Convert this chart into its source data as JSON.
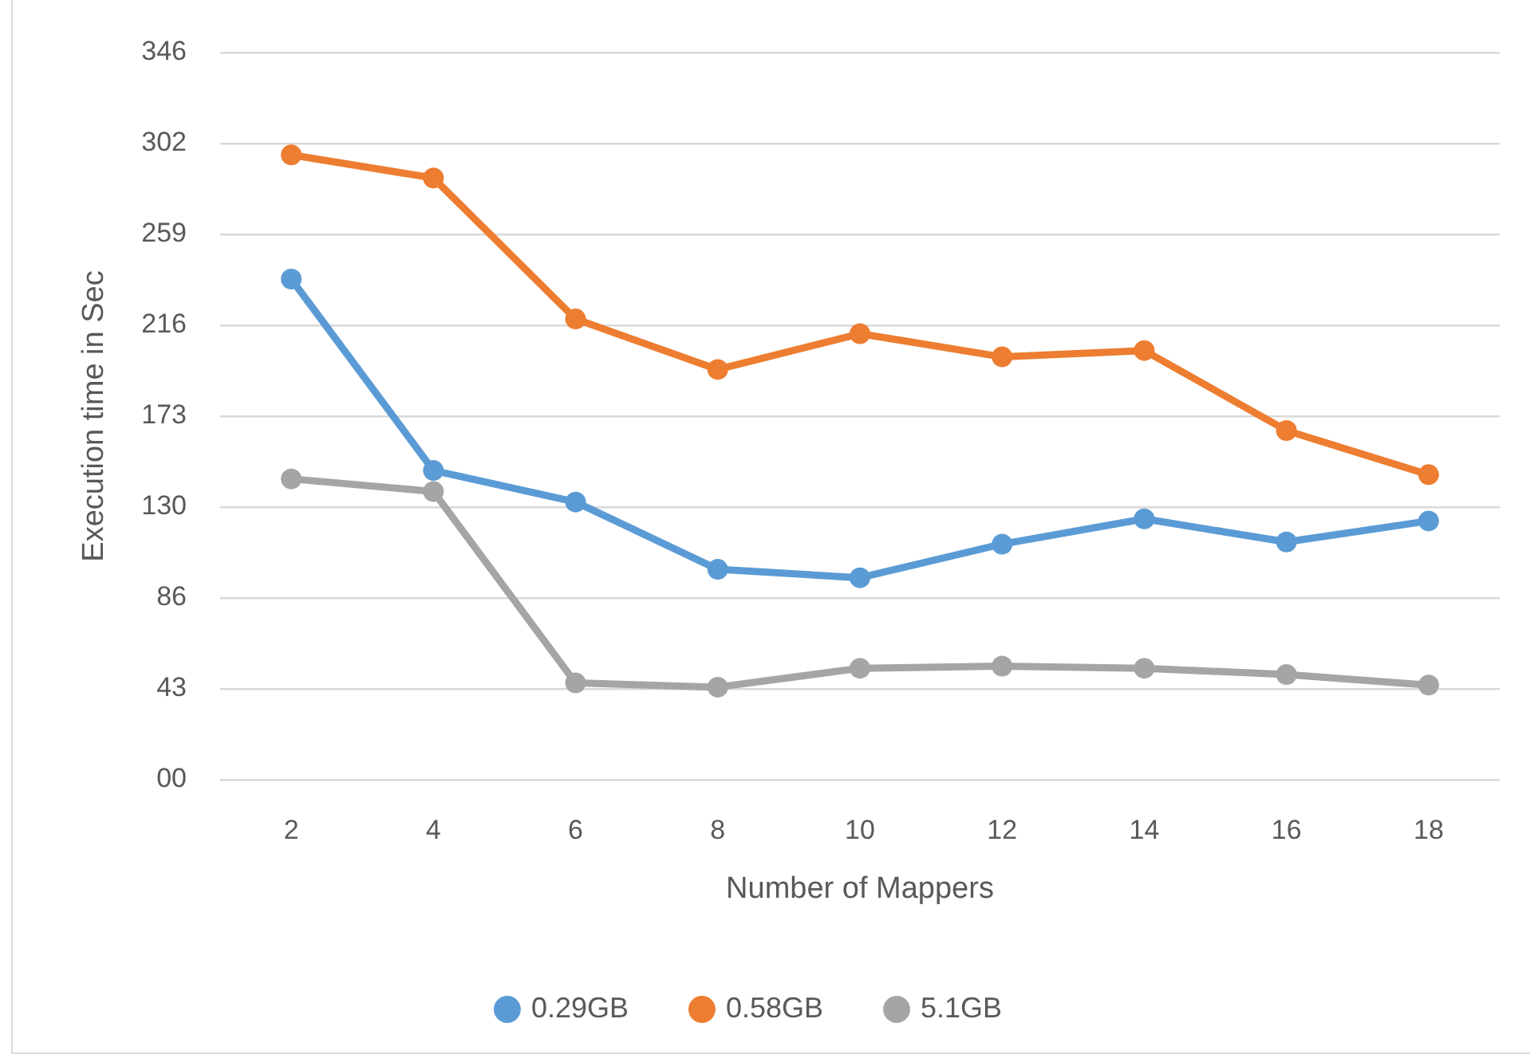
{
  "chart_data": {
    "type": "line",
    "xlabel": "Number of Mappers",
    "ylabel": "Execution time in Sec",
    "categories": [
      "2",
      "4",
      "6",
      "8",
      "10",
      "12",
      "14",
      "16",
      "18"
    ],
    "series": [
      {
        "name": "0.29GB",
        "color": "#5b9bd5",
        "values": [
          238,
          147,
          132,
          100,
          96,
          112,
          124,
          113,
          123
        ]
      },
      {
        "name": "0.58GB",
        "color": "#ed7d31",
        "values": [
          297,
          286,
          219,
          195,
          212,
          201,
          204,
          166,
          145
        ]
      },
      {
        "name": "5.1GB",
        "color": "#a5a5a5",
        "values": [
          143,
          137,
          46,
          44,
          53,
          54,
          53,
          50,
          45
        ]
      }
    ],
    "ylim": [
      0,
      345.6
    ],
    "yticks": [
      {
        "value": 0,
        "label": "00"
      },
      {
        "value": 43.2,
        "label": "43"
      },
      {
        "value": 86.4,
        "label": "86"
      },
      {
        "value": 129.6,
        "label": "130"
      },
      {
        "value": 172.8,
        "label": "173"
      },
      {
        "value": 216,
        "label": "216"
      },
      {
        "value": 259.2,
        "label": "259"
      },
      {
        "value": 302.4,
        "label": "302"
      },
      {
        "value": 345.6,
        "label": "346"
      }
    ],
    "grid": "y",
    "legend": "bottom",
    "marker": "circle"
  }
}
